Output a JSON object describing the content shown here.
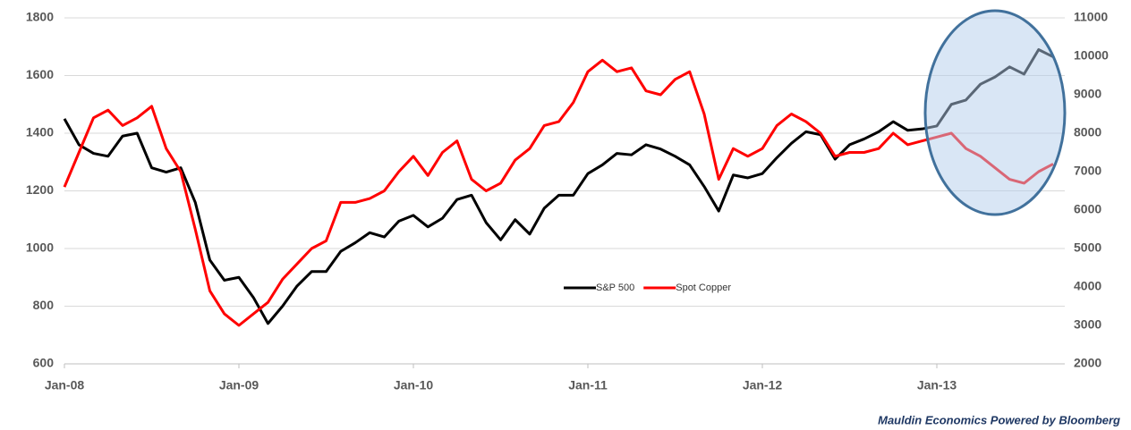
{
  "chart_data": {
    "type": "line",
    "source": "Mauldin Economics Powered by Bloomberg",
    "categories": [
      "Jan-08",
      null,
      null,
      null,
      null,
      null,
      null,
      null,
      null,
      null,
      null,
      null,
      "Jan-09",
      null,
      null,
      null,
      null,
      null,
      null,
      null,
      null,
      null,
      null,
      null,
      "Jan-10",
      null,
      null,
      null,
      null,
      null,
      null,
      null,
      null,
      null,
      null,
      null,
      "Jan-11",
      null,
      null,
      null,
      null,
      null,
      null,
      null,
      null,
      null,
      null,
      null,
      "Jan-12",
      null,
      null,
      null,
      null,
      null,
      null,
      null,
      null,
      null,
      null,
      null,
      "Jan-13",
      null,
      null,
      null,
      null,
      null,
      null,
      null,
      null
    ],
    "series": [
      {
        "name": "S&P 500",
        "color": "#000000",
        "axis": "y",
        "values": [
          1450,
          1360,
          1330,
          1320,
          1390,
          1400,
          1280,
          1265,
          1280,
          1160,
          960,
          890,
          900,
          830,
          740,
          800,
          870,
          920,
          920,
          990,
          1020,
          1055,
          1040,
          1095,
          1115,
          1075,
          1105,
          1170,
          1185,
          1090,
          1030,
          1100,
          1050,
          1140,
          1185,
          1185,
          1260,
          1290,
          1330,
          1325,
          1360,
          1345,
          1320,
          1290,
          1215,
          1130,
          1255,
          1245,
          1260,
          1315,
          1365,
          1405,
          1395,
          1310,
          1360,
          1380,
          1405,
          1440,
          1410,
          1415,
          1425,
          1500,
          1515,
          1570,
          1595,
          1630,
          1605,
          1690,
          1665
        ]
      },
      {
        "name": "Spot Copper",
        "color": "#ff0000",
        "axis": "y2",
        "values": [
          6600,
          7500,
          8400,
          8600,
          8200,
          8400,
          8700,
          7600,
          7000,
          5500,
          3900,
          3300,
          3000,
          3300,
          3600,
          4200,
          4600,
          5000,
          5200,
          6200,
          6200,
          6300,
          6500,
          7000,
          7400,
          6900,
          7500,
          7800,
          6800,
          6500,
          6700,
          7300,
          7600,
          8200,
          8300,
          8800,
          9600,
          9900,
          9600,
          9700,
          9100,
          9000,
          9400,
          9600,
          8500,
          6800,
          7600,
          7400,
          7600,
          8200,
          8500,
          8300,
          8000,
          7400,
          7500,
          7500,
          7600,
          8000,
          7700,
          7800,
          7900,
          8000,
          7600,
          7400,
          7100,
          6800,
          6700,
          7000,
          7200
        ]
      }
    ],
    "ylim": [
      600,
      1800
    ],
    "yticks": [
      600,
      800,
      1000,
      1200,
      1400,
      1600,
      1800
    ],
    "y2lim": [
      2000,
      11000
    ],
    "y2ticks": [
      2000,
      3000,
      4000,
      5000,
      6000,
      7000,
      8000,
      9000,
      10000,
      11000
    ],
    "grid": true
  }
}
